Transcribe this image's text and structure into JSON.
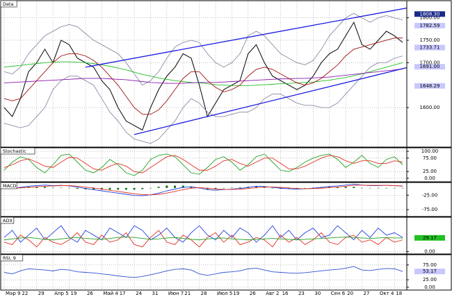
{
  "chart_data": [
    {
      "type": "line",
      "title": "Data",
      "ylim": [
        1515,
        1835
      ],
      "yticks": [
        {
          "value": 1800,
          "label": "1800.00"
        },
        {
          "value": 1750,
          "label": "1750.00"
        },
        {
          "value": 1700,
          "label": "1700.00"
        },
        {
          "value": 1600,
          "label": "1600.00"
        }
      ],
      "markers": [
        {
          "value": 1808.3,
          "label": "1808.30",
          "color": "#1a2a8a"
        },
        {
          "value": 1782.59,
          "label": "1782.59",
          "color": "#c8c8ff"
        },
        {
          "value": 1733.71,
          "label": "1733.71",
          "color": "#c8c8ff"
        },
        {
          "value": 1691,
          "label": "1691.00",
          "color": "#c8c8ff"
        },
        {
          "value": 1648.29,
          "label": "1648.29",
          "color": "#c8c8ff"
        }
      ],
      "grid": true,
      "series": [
        {
          "color": "#000000",
          "values": [
            1600,
            1580,
            1620,
            1680,
            1700,
            1730,
            1700,
            1750,
            1740,
            1710,
            1700,
            1690,
            1660,
            1640,
            1600,
            1570,
            1560,
            1550,
            1600,
            1640,
            1670,
            1690,
            1720,
            1710,
            1650,
            1580,
            1610,
            1640,
            1650,
            1660,
            1720,
            1740,
            1700,
            1670,
            1660,
            1650,
            1640,
            1650,
            1670,
            1700,
            1720,
            1730,
            1760,
            1790,
            1740,
            1730,
            1750,
            1770,
            1760,
            1745
          ]
        },
        {
          "color": "#8a8aa8",
          "values": [
            1680,
            1675,
            1690,
            1720,
            1740,
            1760,
            1770,
            1780,
            1785,
            1780,
            1765,
            1750,
            1740,
            1730,
            1720,
            1700,
            1675,
            1650,
            1660,
            1680,
            1710,
            1735,
            1745,
            1750,
            1745,
            1720,
            1700,
            1690,
            1700,
            1720,
            1760,
            1770,
            1760,
            1740,
            1720,
            1710,
            1700,
            1695,
            1705,
            1730,
            1760,
            1780,
            1800,
            1810,
            1800,
            1790,
            1800,
            1805,
            1800,
            1795
          ]
        },
        {
          "color": "#8a8aa8",
          "values": [
            1565,
            1560,
            1555,
            1560,
            1580,
            1600,
            1640,
            1660,
            1670,
            1670,
            1660,
            1650,
            1620,
            1590,
            1570,
            1545,
            1530,
            1525,
            1520,
            1530,
            1550,
            1570,
            1600,
            1620,
            1610,
            1590,
            1580,
            1580,
            1585,
            1590,
            1590,
            1600,
            1620,
            1630,
            1630,
            1620,
            1610,
            1605,
            1605,
            1600,
            1600,
            1610,
            1630,
            1650,
            1670,
            1690,
            1700,
            1700,
            1710,
            1715
          ]
        },
        {
          "color": "#22c022",
          "values": [
            1690,
            1692,
            1694,
            1696,
            1698,
            1700,
            1701,
            1702,
            1702,
            1701,
            1700,
            1698,
            1695,
            1692,
            1688,
            1684,
            1679,
            1674,
            1670,
            1666,
            1663,
            1660,
            1658,
            1656,
            1655,
            1653,
            1651,
            1650,
            1649,
            1649,
            1649,
            1650,
            1651,
            1652,
            1653,
            1654,
            1655,
            1656,
            1657,
            1659,
            1661,
            1664,
            1667,
            1671,
            1675,
            1680,
            1685,
            1690,
            1695,
            1700
          ]
        },
        {
          "color": "#8a1ab0",
          "values": [
            1655,
            1656,
            1657,
            1658,
            1659,
            1660,
            1661,
            1662,
            1663,
            1664,
            1665,
            1665,
            1665,
            1664,
            1663,
            1662,
            1660,
            1658,
            1656,
            1655,
            1654,
            1654,
            1654,
            1655,
            1656,
            1656,
            1656,
            1657,
            1658,
            1659,
            1660,
            1661,
            1662,
            1663,
            1664,
            1664,
            1665,
            1665,
            1666,
            1667,
            1668,
            1670,
            1672,
            1674,
            1676,
            1678,
            1680,
            1682,
            1684,
            1686
          ]
        },
        {
          "color": "#a01010",
          "values": [
            1620,
            1615,
            1620,
            1640,
            1660,
            1680,
            1700,
            1715,
            1720,
            1720,
            1715,
            1705,
            1690,
            1670,
            1650,
            1625,
            1600,
            1585,
            1585,
            1595,
            1615,
            1640,
            1665,
            1680,
            1680,
            1660,
            1645,
            1635,
            1640,
            1650,
            1670,
            1685,
            1690,
            1685,
            1675,
            1665,
            1655,
            1650,
            1655,
            1665,
            1680,
            1695,
            1715,
            1730,
            1735,
            1740,
            1745,
            1750,
            1755,
            1755
          ]
        }
      ],
      "trendlines": [
        {
          "color": "#1a1ae0",
          "x": [
            10,
            52
          ],
          "values": [
            1690,
            1830
          ]
        },
        {
          "color": "#1a1ae0",
          "x": [
            16,
            52
          ],
          "values": [
            1540,
            1700
          ]
        }
      ]
    },
    {
      "type": "line",
      "title": "Stochastic",
      "ylim": [
        -8,
        108
      ],
      "yticks": [
        {
          "value": 100,
          "label": "100.00"
        },
        {
          "value": 75,
          "label": "75.00"
        },
        {
          "value": 25,
          "label": "25.00"
        },
        {
          "value": 0,
          "label": "0.00"
        }
      ],
      "grid": true,
      "series": [
        {
          "color": "#22a022",
          "values": [
            30,
            60,
            80,
            70,
            40,
            20,
            50,
            85,
            90,
            60,
            30,
            20,
            40,
            70,
            50,
            20,
            10,
            30,
            70,
            85,
            90,
            80,
            50,
            20,
            15,
            40,
            70,
            80,
            60,
            30,
            50,
            80,
            90,
            60,
            30,
            25,
            40,
            60,
            75,
            85,
            90,
            70,
            40,
            60,
            85,
            55,
            40,
            70,
            80,
            50
          ]
        },
        {
          "color": "#e03020",
          "values": [
            40,
            50,
            65,
            72,
            60,
            45,
            40,
            60,
            78,
            75,
            55,
            35,
            30,
            45,
            55,
            45,
            25,
            20,
            40,
            60,
            80,
            85,
            70,
            50,
            30,
            30,
            45,
            65,
            70,
            55,
            45,
            60,
            75,
            75,
            55,
            35,
            35,
            45,
            60,
            75,
            85,
            80,
            65,
            55,
            65,
            65,
            55,
            55,
            65,
            60
          ]
        }
      ]
    },
    {
      "type": "line",
      "title": "MACD",
      "ylim": [
        -94,
        14
      ],
      "yticks": [
        {
          "value": -25,
          "label": "-25.00"
        },
        {
          "value": -75,
          "label": "-75.00"
        }
      ],
      "grid": true,
      "histogram": {
        "color": "#107010",
        "values": [
          0,
          -1,
          2,
          4,
          4,
          4,
          1,
          1,
          -1,
          -3,
          -5,
          -6,
          -6,
          -6,
          -6,
          -6,
          -6,
          -4,
          0,
          4,
          8,
          8,
          8,
          5,
          -1,
          -5,
          -4,
          -1,
          1,
          2,
          4,
          5,
          2,
          -1,
          -3,
          -3,
          -2,
          0,
          1,
          3,
          4,
          4,
          4,
          4,
          0,
          -1,
          -1,
          0,
          0,
          -1
        ]
      },
      "series": [
        {
          "color": "#2040e0",
          "values": [
            0,
            -2,
            2,
            6,
            8,
            10,
            8,
            9,
            7,
            3,
            -2,
            -6,
            -10,
            -14,
            -18,
            -22,
            -26,
            -27,
            -24,
            -18,
            -10,
            -4,
            2,
            4,
            0,
            -6,
            -8,
            -6,
            -4,
            -2,
            2,
            6,
            5,
            2,
            -1,
            -3,
            -4,
            -3,
            -1,
            2,
            5,
            7,
            10,
            13,
            10,
            8,
            8,
            9,
            8,
            6
          ]
        },
        {
          "color": "#e03020",
          "values": [
            0,
            -1,
            0,
            2,
            4,
            6,
            7,
            8,
            8,
            6,
            3,
            0,
            -4,
            -8,
            -12,
            -16,
            -20,
            -23,
            -24,
            -22,
            -18,
            -12,
            -6,
            -1,
            1,
            -1,
            -4,
            -5,
            -5,
            -4,
            -2,
            1,
            3,
            3,
            2,
            0,
            -2,
            -3,
            -2,
            -1,
            1,
            3,
            6,
            9,
            10,
            9,
            9,
            9,
            8,
            7
          ]
        }
      ]
    },
    {
      "type": "line",
      "title": "ADX",
      "ylim": [
        -2,
        70
      ],
      "yticks": [
        {
          "value": 0,
          "label": "0.00"
        }
      ],
      "markers": [
        {
          "value": 29.17,
          "label": "29.17",
          "color": "#22c022"
        }
      ],
      "grid": true,
      "series": [
        {
          "color": "#2040e0",
          "values": [
            30,
            45,
            20,
            35,
            50,
            25,
            40,
            55,
            30,
            20,
            45,
            35,
            25,
            50,
            40,
            30,
            55,
            45,
            25,
            35,
            50,
            30,
            20,
            40,
            55,
            35,
            25,
            45,
            30,
            50,
            40,
            20,
            35,
            55,
            30,
            45,
            25,
            40,
            50,
            30,
            35,
            55,
            40,
            25,
            45,
            30,
            50,
            35,
            40,
            30
          ]
        },
        {
          "color": "#e03020",
          "values": [
            20,
            15,
            35,
            25,
            10,
            30,
            20,
            15,
            25,
            40,
            20,
            15,
            35,
            20,
            25,
            40,
            15,
            10,
            30,
            45,
            20,
            15,
            35,
            25,
            10,
            30,
            40,
            20,
            35,
            15,
            20,
            30,
            25,
            10,
            35,
            20,
            30,
            15,
            25,
            40,
            20,
            15,
            30,
            35,
            20,
            25,
            15,
            30,
            20,
            25
          ]
        },
        {
          "color": "#22a022",
          "values": [
            25,
            27,
            29,
            30,
            28,
            26,
            25,
            27,
            29,
            30,
            28,
            27,
            26,
            28,
            30,
            31,
            30,
            28,
            26,
            27,
            29,
            30,
            28,
            26,
            25,
            27,
            28,
            29,
            27,
            26,
            25,
            26,
            27,
            28,
            27,
            26,
            25,
            26,
            27,
            28,
            29,
            30,
            31,
            30,
            29,
            28,
            29,
            30,
            29,
            29
          ]
        }
      ]
    },
    {
      "type": "line",
      "title": "RSI, 9",
      "ylim": [
        -5,
        105
      ],
      "yticks": [
        {
          "value": 75,
          "label": "75.00"
        },
        {
          "value": 25,
          "label": "25.00"
        },
        {
          "value": 0,
          "label": "0.00"
        }
      ],
      "markers": [
        {
          "value": 53.17,
          "label": "53.17",
          "color": "#c8c8ff"
        }
      ],
      "grid": true,
      "series": [
        {
          "color": "#3050d0",
          "values": [
            50,
            45,
            55,
            62,
            60,
            58,
            55,
            60,
            58,
            52,
            50,
            48,
            45,
            42,
            38,
            35,
            33,
            36,
            42,
            48,
            55,
            60,
            62,
            58,
            45,
            40,
            45,
            50,
            52,
            55,
            62,
            64,
            58,
            52,
            50,
            48,
            47,
            49,
            52,
            55,
            58,
            60,
            64,
            70,
            58,
            56,
            60,
            63,
            62,
            53
          ]
        }
      ],
      "categories": [
        "Мар 9",
        null,
        "22",
        null,
        "29",
        null,
        "Апр 5",
        null,
        "19",
        null,
        "26",
        null,
        "Май 4",
        null,
        "17",
        null,
        "24",
        null,
        "31",
        null,
        "Июн 7",
        null,
        "21",
        null,
        "28",
        null,
        "Июл 5",
        null,
        "19",
        null,
        "26",
        null,
        "Авг 2",
        null,
        "16",
        null,
        "23",
        null,
        "30",
        null,
        "Сен 6",
        null,
        "20",
        null,
        "27",
        null,
        "Окт 4",
        null,
        "18",
        null
      ]
    }
  ]
}
